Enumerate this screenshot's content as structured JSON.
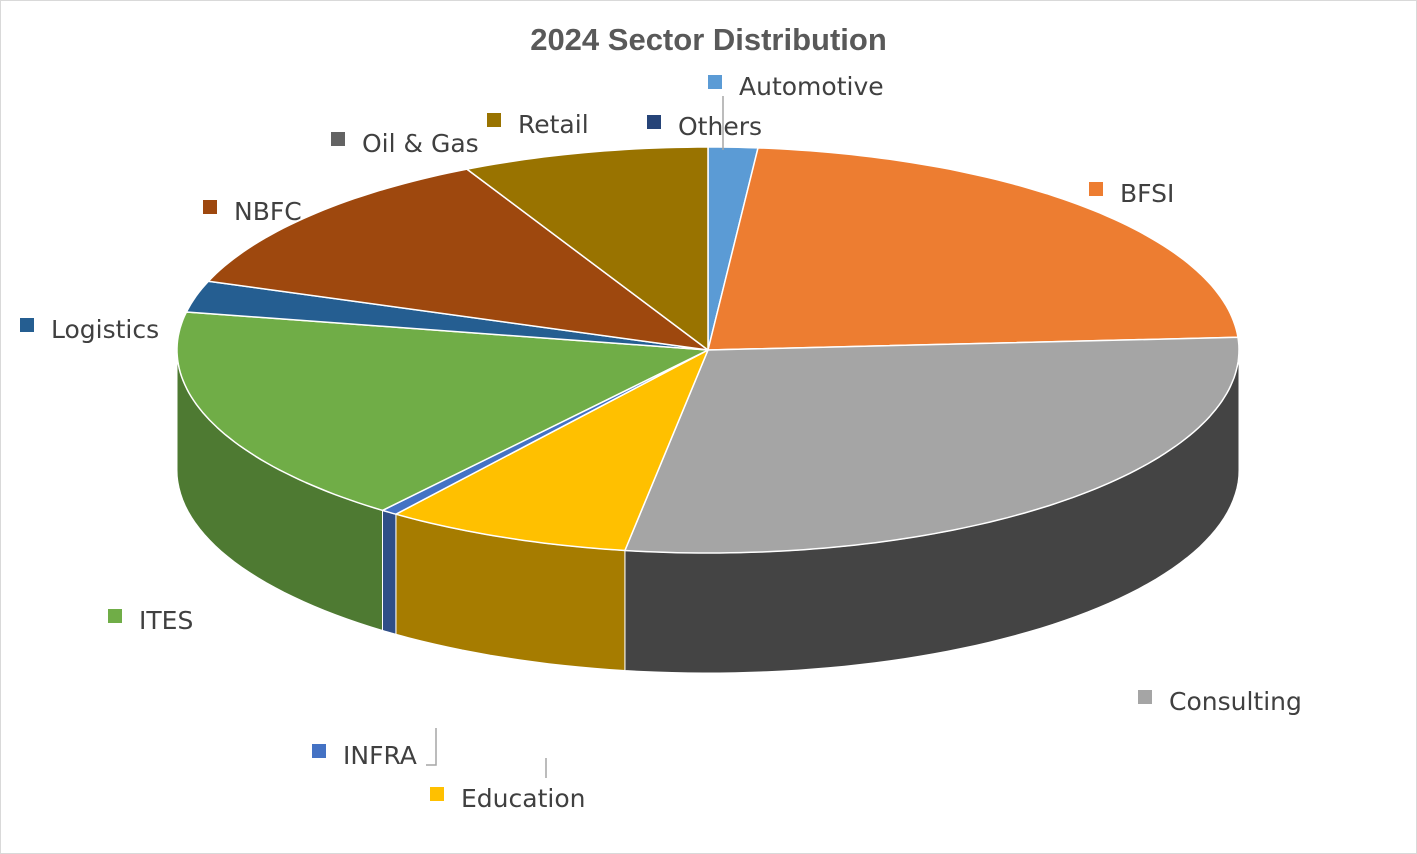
{
  "chart_data": {
    "type": "pie",
    "title": "2024 Sector Distribution",
    "style": "3d",
    "legend": "none",
    "start_angle_deg": 90,
    "slices": [
      {
        "name": "Automotive",
        "value": 1.5,
        "color": "#5b9bd5",
        "side": "#3f6c95"
      },
      {
        "name": "BFSI",
        "value": 22.5,
        "color": "#ed7d31",
        "side": "#a5571f"
      },
      {
        "name": "Consulting",
        "value": 28.5,
        "color": "#a5a5a5",
        "side": "#444444"
      },
      {
        "name": "Education",
        "value": 7.5,
        "color": "#ffc000",
        "side": "#a67c00"
      },
      {
        "name": "INFRA",
        "value": 0.5,
        "color": "#4472c4",
        "side": "#2f4f88"
      },
      {
        "name": "ITES",
        "value": 17.5,
        "color": "#70ad47",
        "side": "#4e7a32"
      },
      {
        "name": "Logistics",
        "value": 2.5,
        "color": "#255e91",
        "side": "#1a4266"
      },
      {
        "name": "NBFC",
        "value": 12.0,
        "color": "#9e480e",
        "side": "#6e320a"
      },
      {
        "name": "Oil & Gas",
        "value": 0.0,
        "color": "#636363",
        "side": "#444444"
      },
      {
        "name": "Retail",
        "value": 7.5,
        "color": "#997300",
        "side": "#6b5000"
      },
      {
        "name": "Others",
        "value": 0.0,
        "color": "#264478",
        "side": "#1a2f54"
      }
    ]
  }
}
